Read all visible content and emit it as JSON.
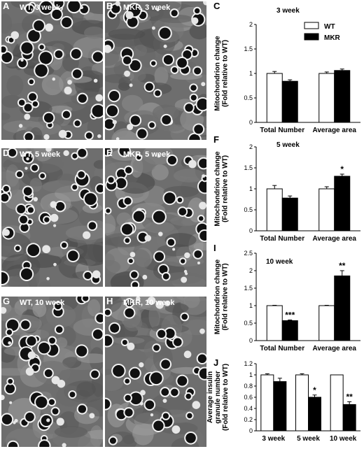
{
  "panels": [
    {
      "id": "A",
      "label": "A",
      "title": "WT, 3 week"
    },
    {
      "id": "B",
      "label": "B",
      "title": "MKR, 3 week"
    },
    {
      "id": "D",
      "label": "D",
      "title": "WT, 5 week"
    },
    {
      "id": "E",
      "label": "E",
      "title": "MKR, 5 week"
    },
    {
      "id": "G",
      "label": "G",
      "title": "WT, 10 week"
    },
    {
      "id": "H",
      "label": "H",
      "title": "MKR, 10 week"
    }
  ],
  "legend": {
    "wt": "WT",
    "mkr": "MKR"
  },
  "colors": {
    "wt": "#ffffff",
    "mkr": "#000000"
  },
  "chart_data": [
    {
      "id": "C",
      "label": "C",
      "type": "bar",
      "title": "3 week",
      "ylabel": "Mitochondrion change (Fold relative to WT)",
      "ylim": [
        0,
        2
      ],
      "yticks": [
        "0",
        "0.5",
        "1",
        "1.5",
        "2"
      ],
      "categories": [
        "Total Number",
        "Average area"
      ],
      "series": [
        {
          "name": "WT",
          "values": [
            1.0,
            1.0
          ],
          "errors": [
            0.04,
            0.03
          ]
        },
        {
          "name": "MKR",
          "values": [
            0.84,
            1.06
          ],
          "errors": [
            0.03,
            0.03
          ]
        }
      ],
      "significance": [
        [
          "",
          ""
        ],
        [
          "",
          ""
        ]
      ],
      "legend": true
    },
    {
      "id": "F",
      "label": "F",
      "type": "bar",
      "title": "5 week",
      "ylabel": "Mitochondrion change (Fold relative to WT)",
      "ylim": [
        0,
        2
      ],
      "yticks": [
        "0",
        "0.5",
        "1",
        "1.5",
        "2"
      ],
      "categories": [
        "Total Number",
        "Average area"
      ],
      "series": [
        {
          "name": "WT",
          "values": [
            1.0,
            1.0
          ],
          "errors": [
            0.08,
            0.05
          ]
        },
        {
          "name": "MKR",
          "values": [
            0.78,
            1.3
          ],
          "errors": [
            0.05,
            0.05
          ]
        }
      ],
      "significance": [
        [
          "",
          ""
        ],
        [
          "",
          "*"
        ]
      ],
      "legend": false
    },
    {
      "id": "I",
      "label": "I",
      "type": "bar",
      "title": "10 week",
      "ylabel": "Mitochondrion change (Fold relative to WT)",
      "ylim": [
        0,
        2.5
      ],
      "yticks": [
        "0",
        "0.5",
        "1",
        "1.5",
        "2",
        "2.5"
      ],
      "categories": [
        "Total Number",
        "Average area"
      ],
      "series": [
        {
          "name": "WT",
          "values": [
            1.0,
            1.0
          ],
          "errors": [
            0.01,
            0.01
          ]
        },
        {
          "name": "MKR",
          "values": [
            0.57,
            1.85
          ],
          "errors": [
            0.02,
            0.15
          ]
        }
      ],
      "significance": [
        [
          "",
          ""
        ],
        [
          "***",
          "**"
        ]
      ],
      "legend": false
    },
    {
      "id": "J",
      "label": "J",
      "type": "bar",
      "title": "",
      "ylabel": "Average insulin granule number (Fold relative to WT)",
      "ylim": [
        0,
        1.2
      ],
      "yticks": [
        "0",
        "0.2",
        "0.4",
        "0.6",
        "0.8",
        "1",
        "1.2"
      ],
      "categories": [
        "3 week",
        "5 week",
        "10 week"
      ],
      "series": [
        {
          "name": "WT",
          "values": [
            1.0,
            1.0,
            1.0
          ],
          "errors": [
            0.02,
            0.02,
            0.0
          ]
        },
        {
          "name": "MKR",
          "values": [
            0.88,
            0.6,
            0.47
          ],
          "errors": [
            0.06,
            0.04,
            0.05
          ]
        }
      ],
      "significance": [
        [
          "",
          "",
          ""
        ],
        [
          "",
          "*",
          "**"
        ]
      ],
      "legend": false
    }
  ]
}
